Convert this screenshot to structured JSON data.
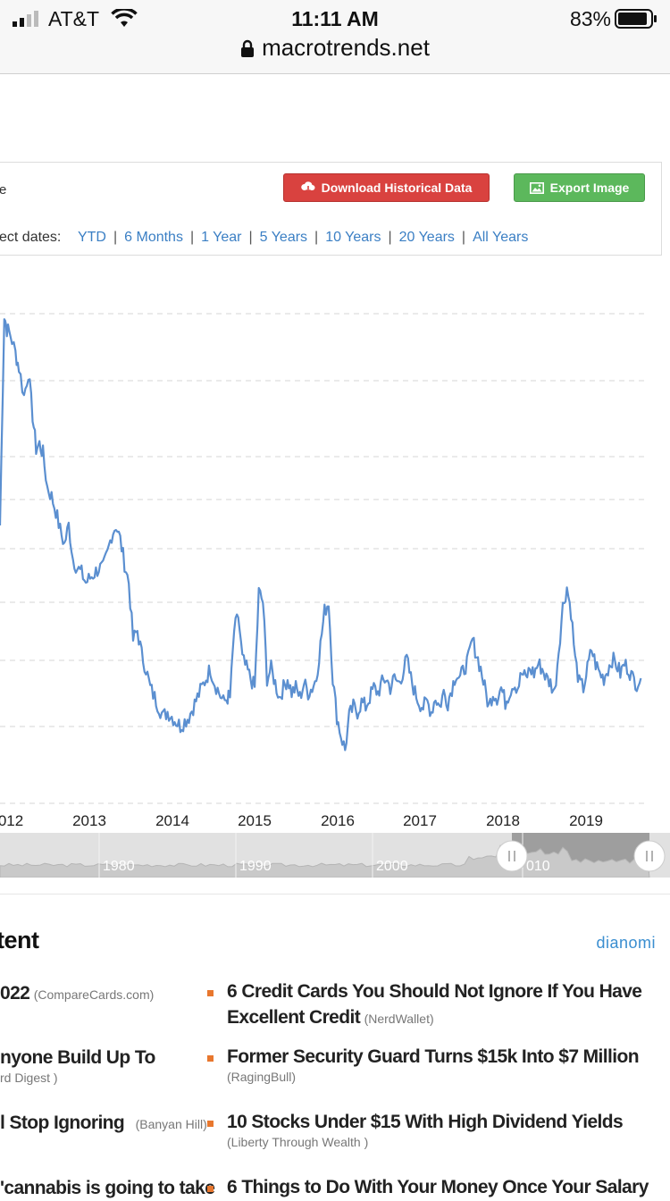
{
  "status_bar": {
    "carrier": "AT&T",
    "time": "11:11 AM",
    "battery": "83%"
  },
  "browser": {
    "url": "macrotrends.net"
  },
  "controls": {
    "partial_label": "e",
    "download_label": "Download Historical Data",
    "export_label": "Export Image",
    "zoom_prefix": "ect dates:",
    "zoom_options": [
      "YTD",
      "6 Months",
      "1 Year",
      "5 Years",
      "10 Years",
      "20 Years",
      "All Years"
    ]
  },
  "chart_data": {
    "type": "line",
    "x_ticks": [
      "012",
      "2013",
      "2014",
      "2015",
      "2016",
      "2017",
      "2018",
      "2019"
    ],
    "grid": "horizontal dashed",
    "series": [
      {
        "color": "#5b8fd0",
        "points": [
          [
            2012.0,
            0.52
          ],
          [
            2012.05,
            0.96
          ],
          [
            2012.08,
            0.93
          ],
          [
            2012.12,
            0.92
          ],
          [
            2012.18,
            0.88
          ],
          [
            2012.22,
            0.85
          ],
          [
            2012.28,
            0.79
          ],
          [
            2012.33,
            0.84
          ],
          [
            2012.38,
            0.75
          ],
          [
            2012.42,
            0.68
          ],
          [
            2012.46,
            0.69
          ],
          [
            2012.5,
            0.67
          ],
          [
            2012.55,
            0.6
          ],
          [
            2012.6,
            0.58
          ],
          [
            2012.65,
            0.55
          ],
          [
            2012.7,
            0.51
          ],
          [
            2012.75,
            0.48
          ],
          [
            2012.8,
            0.52
          ],
          [
            2012.85,
            0.45
          ],
          [
            2012.9,
            0.43
          ],
          [
            2012.95,
            0.42
          ],
          [
            2013.0,
            0.4
          ],
          [
            2013.05,
            0.41
          ],
          [
            2013.1,
            0.42
          ],
          [
            2013.15,
            0.43
          ],
          [
            2013.2,
            0.43
          ],
          [
            2013.25,
            0.46
          ],
          [
            2013.3,
            0.5
          ],
          [
            2013.35,
            0.52
          ],
          [
            2013.4,
            0.49
          ],
          [
            2013.45,
            0.44
          ],
          [
            2013.5,
            0.4
          ],
          [
            2013.55,
            0.28
          ],
          [
            2013.6,
            0.3
          ],
          [
            2013.65,
            0.25
          ],
          [
            2013.7,
            0.22
          ],
          [
            2013.75,
            0.18
          ],
          [
            2013.8,
            0.16
          ],
          [
            2013.85,
            0.14
          ],
          [
            2013.9,
            0.12
          ],
          [
            2013.95,
            0.13
          ],
          [
            2014.0,
            0.12
          ],
          [
            2014.05,
            0.11
          ],
          [
            2014.1,
            0.1
          ],
          [
            2014.15,
            0.11
          ],
          [
            2014.2,
            0.12
          ],
          [
            2014.25,
            0.14
          ],
          [
            2014.3,
            0.16
          ],
          [
            2014.35,
            0.18
          ],
          [
            2014.4,
            0.2
          ],
          [
            2014.45,
            0.22
          ],
          [
            2014.5,
            0.19
          ],
          [
            2014.55,
            0.17
          ],
          [
            2014.6,
            0.15
          ],
          [
            2014.65,
            0.16
          ]
        ]
      }
    ],
    "navigator_labels": [
      "1980",
      "1990",
      "2000",
      "010"
    ]
  },
  "content": {
    "title": "tent",
    "brand": "dianomi",
    "left_items": [
      {
        "headline": "022",
        "source": "(CompareCards.com)"
      },
      {
        "headline": "nyone Build Up To",
        "source": "rd Digest )"
      },
      {
        "headline": "l Stop Ignoring",
        "source": "(Banyan Hill)"
      },
      {
        "headline": "'cannabis is going to take",
        "source": ""
      }
    ],
    "right_items": [
      {
        "headline_line1": "6 Credit Cards You Should Not Ignore If You Have",
        "headline_line2": "Excellent Credit",
        "source": "(NerdWallet)"
      },
      {
        "headline_line1": "Former Security Guard Turns $15k Into $7 Million",
        "headline_line2": "",
        "source": "(RagingBull)"
      },
      {
        "headline_line1": "10 Stocks Under $15 With High Dividend Yields",
        "headline_line2": "",
        "source": "(Liberty Through Wealth )"
      },
      {
        "headline_line1": "6 Things to Do With Your Money Once Your Salary",
        "headline_line2": "",
        "source": ""
      }
    ]
  }
}
